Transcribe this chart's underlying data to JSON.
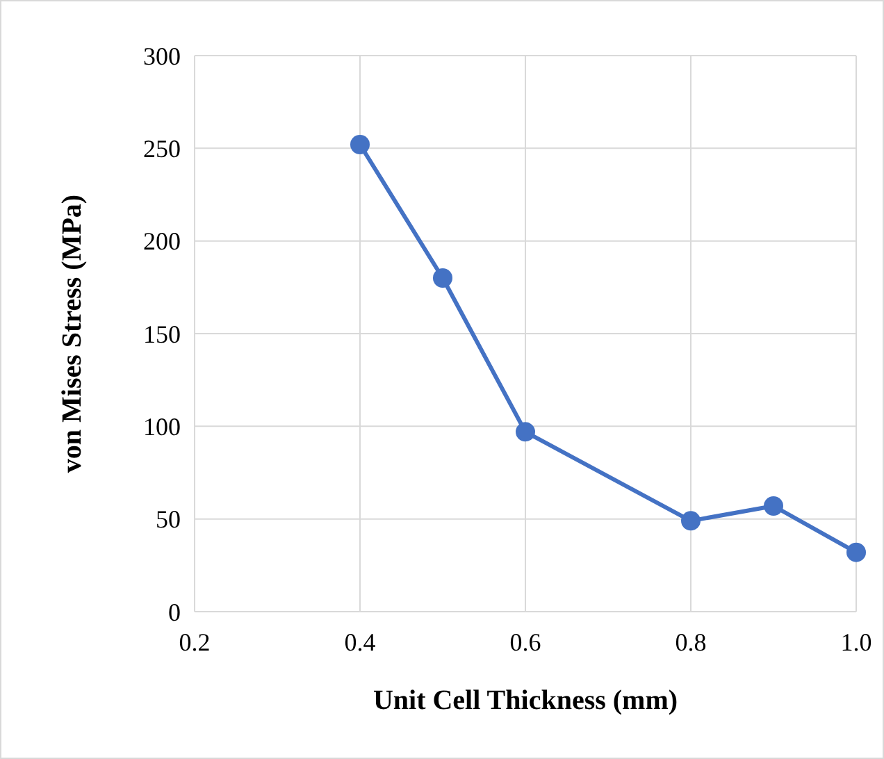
{
  "chart_data": {
    "type": "line",
    "xlabel": "Unit Cell Thickness (mm)",
    "ylabel": "von Mises Stress (MPa)",
    "x": [
      0.4,
      0.5,
      0.6,
      0.8,
      0.9,
      1.0
    ],
    "series": [
      {
        "color": "#4472c4",
        "values": [
          252,
          180,
          97,
          49,
          57,
          32
        ]
      }
    ],
    "xlim": [
      0.2,
      1.0
    ],
    "xticks": [
      {
        "value": 0.2,
        "label": "0.2"
      },
      {
        "value": 0.4,
        "label": "0.4"
      },
      {
        "value": 0.6,
        "label": "0.6"
      },
      {
        "value": 0.8,
        "label": "0.8"
      },
      {
        "value": 1.0,
        "label": "1.0"
      }
    ],
    "ylim": [
      0,
      300
    ],
    "yticks": [
      0,
      50,
      100,
      150,
      200,
      250,
      300
    ],
    "grid": true,
    "marker": "circle",
    "line_style": "solid"
  }
}
